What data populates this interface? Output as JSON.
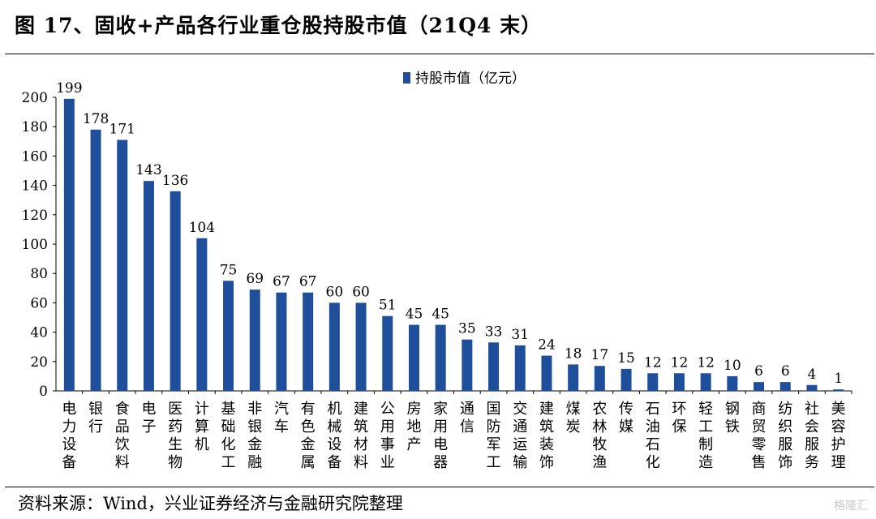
{
  "title": "图 17、固收+产品各行业重仓股持股市值（21Q4 末）",
  "source": "资料来源：Wind，兴业证券经济与金融研究院整理",
  "watermark": "格隆汇",
  "colors": {
    "bar": "#1F4E9A"
  },
  "chart_data": {
    "type": "bar",
    "title": "",
    "xlabel": "",
    "ylabel": "",
    "ylim": [
      0,
      200
    ],
    "yticks": [
      0,
      20,
      40,
      60,
      80,
      100,
      120,
      140,
      160,
      180,
      200
    ],
    "grid": false,
    "legend_position": "top-center",
    "series": [
      {
        "name": "持股市值（亿元）",
        "values": [
          199,
          178,
          171,
          143,
          136,
          104,
          75,
          69,
          67,
          67,
          60,
          60,
          51,
          45,
          45,
          35,
          33,
          31,
          24,
          18,
          17,
          15,
          12,
          12,
          12,
          10,
          6,
          6,
          4,
          1
        ]
      }
    ],
    "categories": [
      "电力设备",
      "银行",
      "食品饮料",
      "电子",
      "医药生物",
      "计算机",
      "基础化工",
      "非银金融",
      "汽车",
      "有色金属",
      "机械设备",
      "建筑材料",
      "公用事业",
      "房地产",
      "家用电器",
      "通信",
      "国防军工",
      "交通运输",
      "建筑装饰",
      "煤炭",
      "农林牧渔",
      "传媒",
      "石油石化",
      "环保",
      "轻工制造",
      "钢铁",
      "商贸零售",
      "纺织服饰",
      "社会服务",
      "美容护理"
    ]
  }
}
